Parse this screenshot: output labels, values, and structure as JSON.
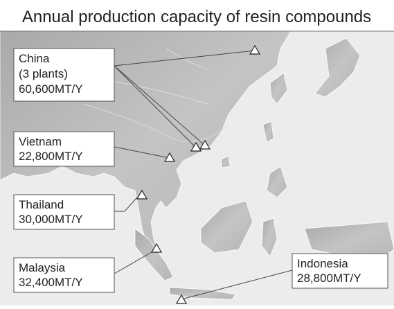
{
  "title": "Annual production capacity of resin compounds",
  "sites": [
    {
      "name": "China",
      "note": "(3 plants)",
      "capacity": "60,600MT/Y"
    },
    {
      "name": "Vietnam",
      "capacity": "22,800MT/Y"
    },
    {
      "name": "Thailand",
      "capacity": "30,000MT/Y"
    },
    {
      "name": "Malaysia",
      "capacity": "32,400MT/Y"
    },
    {
      "name": "Indonesia",
      "capacity": "28,800MT/Y"
    }
  ]
}
